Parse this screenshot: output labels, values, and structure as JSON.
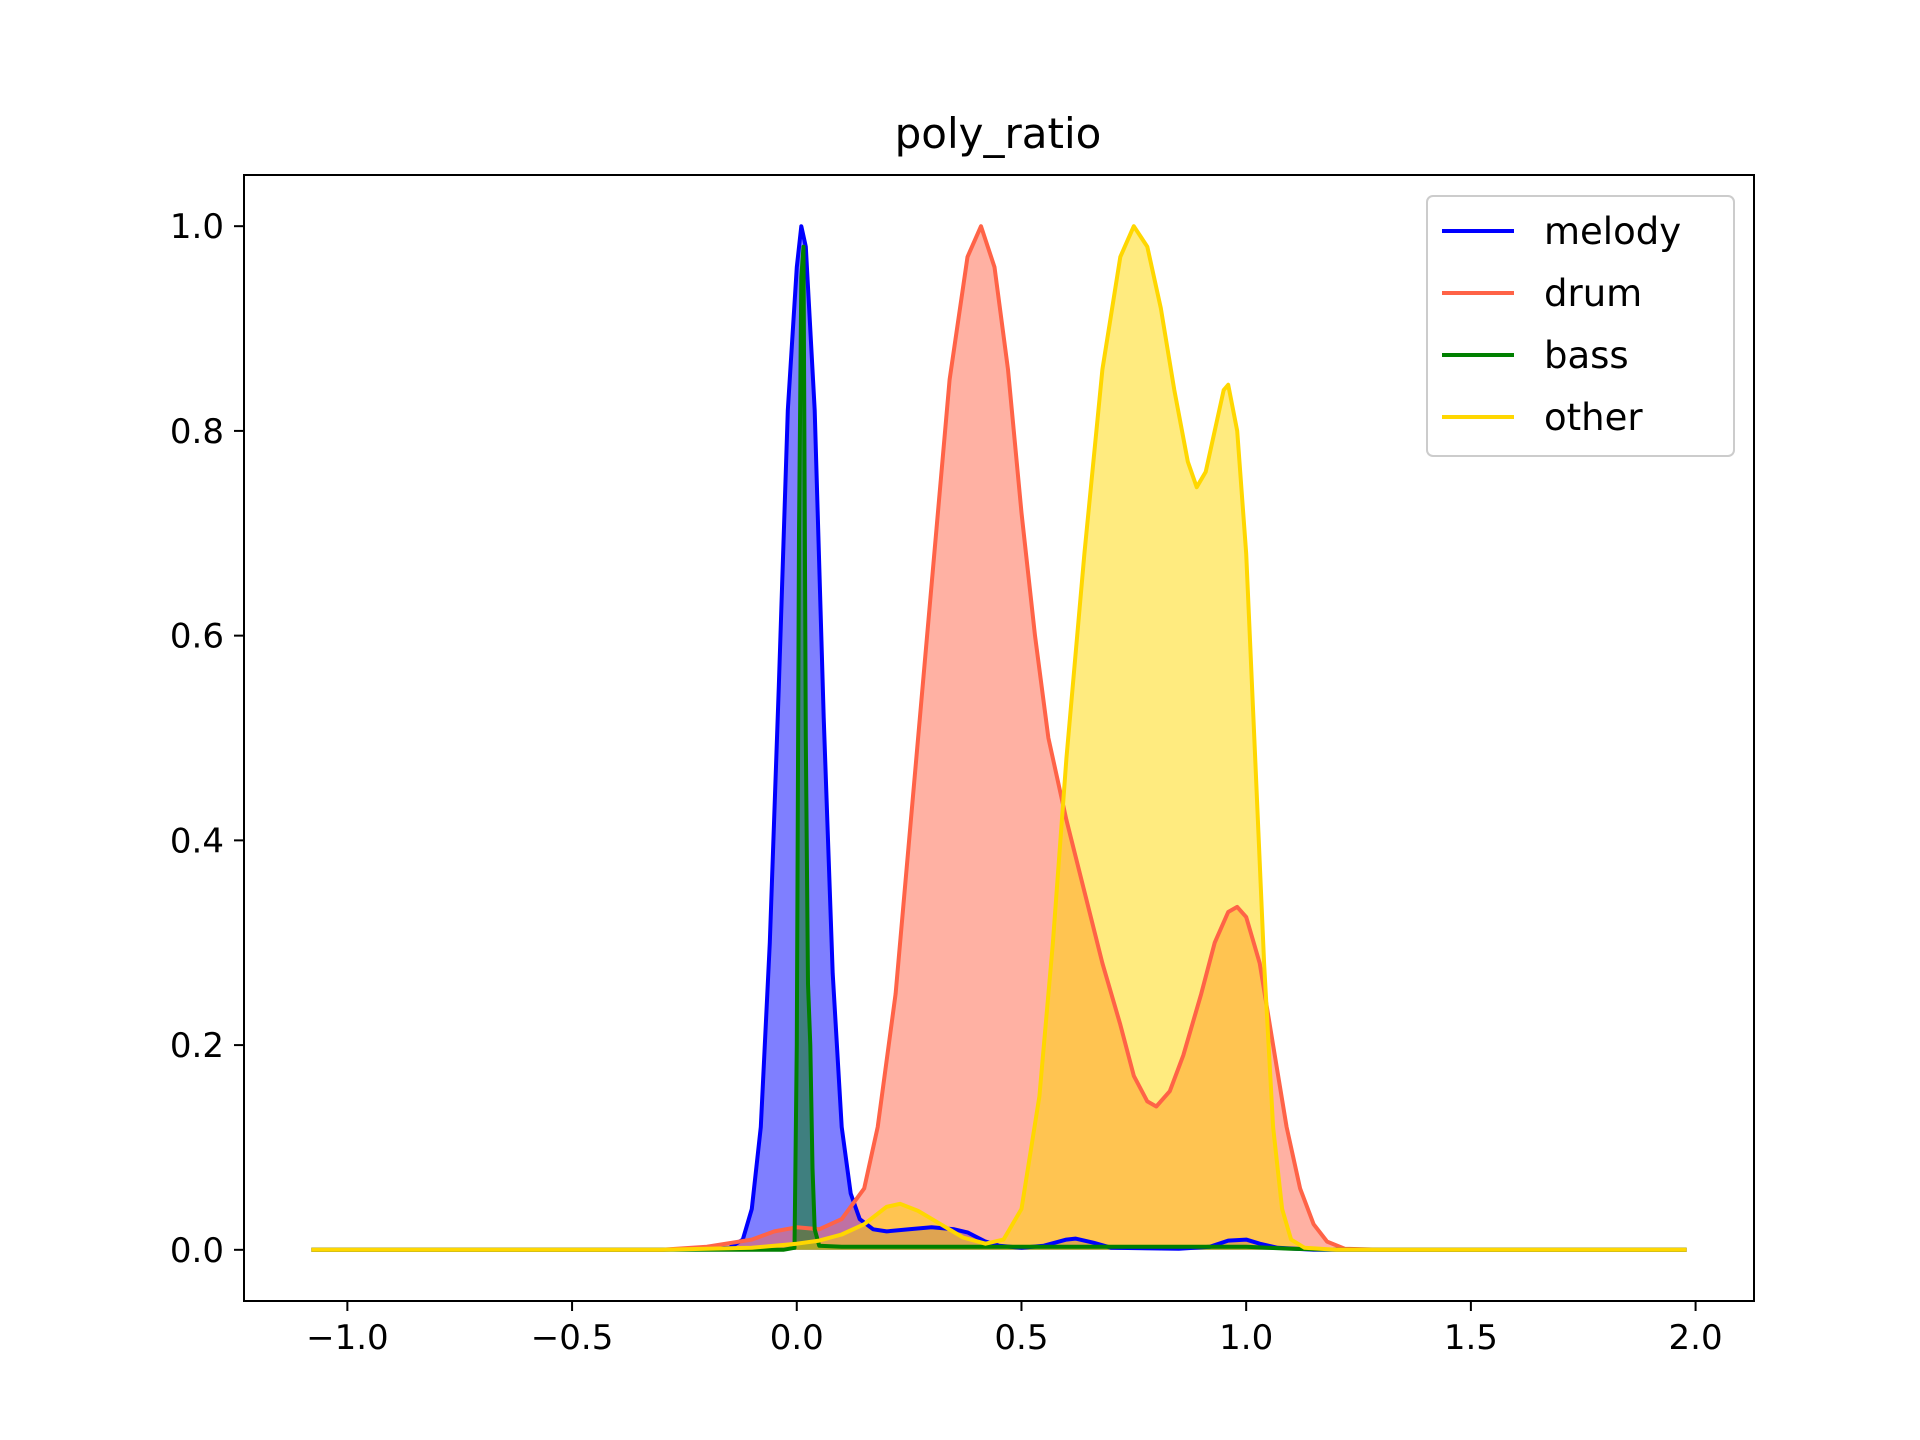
{
  "chart_data": {
    "type": "area",
    "title": "poly_ratio",
    "xlabel": "",
    "ylabel": "",
    "xlim": [
      -1.23,
      2.13
    ],
    "ylim": [
      -0.05,
      1.05
    ],
    "x_ticks": [
      -1.0,
      -0.5,
      0.0,
      0.5,
      1.0,
      1.5,
      2.0
    ],
    "x_tick_labels": [
      "−1.0",
      "−0.5",
      "0.0",
      "0.5",
      "1.0",
      "1.5",
      "2.0"
    ],
    "y_ticks": [
      0.0,
      0.2,
      0.4,
      0.6,
      0.8,
      1.0
    ],
    "y_tick_labels": [
      "0.0",
      "0.2",
      "0.4",
      "0.6",
      "0.8",
      "1.0"
    ],
    "grid": false,
    "legend_position": "top-right",
    "series": [
      {
        "name": "melody",
        "color": "#0000ff",
        "fill": true,
        "points": [
          [
            -1.08,
            0
          ],
          [
            -0.3,
            0
          ],
          [
            -0.15,
            0.002
          ],
          [
            -0.12,
            0.01
          ],
          [
            -0.1,
            0.04
          ],
          [
            -0.08,
            0.12
          ],
          [
            -0.06,
            0.3
          ],
          [
            -0.04,
            0.55
          ],
          [
            -0.02,
            0.82
          ],
          [
            0.0,
            0.96
          ],
          [
            0.01,
            1.0
          ],
          [
            0.02,
            0.98
          ],
          [
            0.04,
            0.82
          ],
          [
            0.06,
            0.52
          ],
          [
            0.08,
            0.27
          ],
          [
            0.1,
            0.12
          ],
          [
            0.12,
            0.055
          ],
          [
            0.14,
            0.03
          ],
          [
            0.17,
            0.02
          ],
          [
            0.2,
            0.018
          ],
          [
            0.25,
            0.02
          ],
          [
            0.3,
            0.022
          ],
          [
            0.35,
            0.02
          ],
          [
            0.38,
            0.017
          ],
          [
            0.42,
            0.008
          ],
          [
            0.45,
            0.004
          ],
          [
            0.5,
            0.002
          ],
          [
            0.55,
            0.004
          ],
          [
            0.6,
            0.01
          ],
          [
            0.62,
            0.011
          ],
          [
            0.66,
            0.007
          ],
          [
            0.7,
            0.002
          ],
          [
            0.85,
            0.001
          ],
          [
            0.92,
            0.003
          ],
          [
            0.96,
            0.009
          ],
          [
            1.0,
            0.01
          ],
          [
            1.03,
            0.006
          ],
          [
            1.07,
            0.002
          ],
          [
            1.15,
            0
          ],
          [
            1.98,
            0
          ]
        ]
      },
      {
        "name": "drum",
        "color": "#ff6347",
        "fill": true,
        "points": [
          [
            -1.08,
            0
          ],
          [
            -0.3,
            0
          ],
          [
            -0.2,
            0.003
          ],
          [
            -0.1,
            0.01
          ],
          [
            -0.05,
            0.018
          ],
          [
            0.0,
            0.022
          ],
          [
            0.05,
            0.02
          ],
          [
            0.1,
            0.03
          ],
          [
            0.15,
            0.06
          ],
          [
            0.18,
            0.12
          ],
          [
            0.22,
            0.25
          ],
          [
            0.26,
            0.45
          ],
          [
            0.3,
            0.65
          ],
          [
            0.34,
            0.85
          ],
          [
            0.38,
            0.97
          ],
          [
            0.41,
            1.0
          ],
          [
            0.44,
            0.96
          ],
          [
            0.47,
            0.86
          ],
          [
            0.5,
            0.72
          ],
          [
            0.53,
            0.6
          ],
          [
            0.56,
            0.5
          ],
          [
            0.6,
            0.42
          ],
          [
            0.64,
            0.35
          ],
          [
            0.68,
            0.28
          ],
          [
            0.72,
            0.22
          ],
          [
            0.75,
            0.17
          ],
          [
            0.78,
            0.145
          ],
          [
            0.8,
            0.14
          ],
          [
            0.83,
            0.155
          ],
          [
            0.86,
            0.19
          ],
          [
            0.9,
            0.25
          ],
          [
            0.93,
            0.3
          ],
          [
            0.96,
            0.33
          ],
          [
            0.98,
            0.335
          ],
          [
            1.0,
            0.325
          ],
          [
            1.03,
            0.28
          ],
          [
            1.06,
            0.2
          ],
          [
            1.09,
            0.12
          ],
          [
            1.12,
            0.06
          ],
          [
            1.15,
            0.025
          ],
          [
            1.18,
            0.008
          ],
          [
            1.22,
            0.001
          ],
          [
            1.3,
            0
          ],
          [
            1.98,
            0
          ]
        ]
      },
      {
        "name": "bass",
        "color": "#008000",
        "fill": true,
        "points": [
          [
            -1.08,
            0
          ],
          [
            -0.03,
            0
          ],
          [
            -0.005,
            0.002
          ],
          [
            0.0,
            0.2
          ],
          [
            0.005,
            0.7
          ],
          [
            0.01,
            0.95
          ],
          [
            0.015,
            0.98
          ],
          [
            0.02,
            0.5
          ],
          [
            0.025,
            0.26
          ],
          [
            0.03,
            0.2
          ],
          [
            0.035,
            0.08
          ],
          [
            0.04,
            0.02
          ],
          [
            0.05,
            0.004
          ],
          [
            0.1,
            0.003
          ],
          [
            0.6,
            0.003
          ],
          [
            1.0,
            0.003
          ],
          [
            1.1,
            0.001
          ],
          [
            1.2,
            0
          ],
          [
            1.98,
            0
          ]
        ]
      },
      {
        "name": "other",
        "color": "#ffd700",
        "fill": true,
        "points": [
          [
            -1.08,
            0
          ],
          [
            -0.3,
            0
          ],
          [
            -0.1,
            0.002
          ],
          [
            -0.05,
            0.004
          ],
          [
            0.0,
            0.006
          ],
          [
            0.05,
            0.009
          ],
          [
            0.1,
            0.015
          ],
          [
            0.15,
            0.025
          ],
          [
            0.2,
            0.042
          ],
          [
            0.23,
            0.045
          ],
          [
            0.27,
            0.038
          ],
          [
            0.32,
            0.025
          ],
          [
            0.37,
            0.012
          ],
          [
            0.42,
            0.006
          ],
          [
            0.46,
            0.01
          ],
          [
            0.5,
            0.04
          ],
          [
            0.54,
            0.15
          ],
          [
            0.57,
            0.3
          ],
          [
            0.6,
            0.48
          ],
          [
            0.64,
            0.68
          ],
          [
            0.68,
            0.86
          ],
          [
            0.72,
            0.97
          ],
          [
            0.75,
            1.0
          ],
          [
            0.78,
            0.98
          ],
          [
            0.81,
            0.92
          ],
          [
            0.84,
            0.84
          ],
          [
            0.87,
            0.77
          ],
          [
            0.89,
            0.745
          ],
          [
            0.91,
            0.76
          ],
          [
            0.93,
            0.8
          ],
          [
            0.95,
            0.84
          ],
          [
            0.96,
            0.845
          ],
          [
            0.98,
            0.8
          ],
          [
            1.0,
            0.68
          ],
          [
            1.02,
            0.48
          ],
          [
            1.04,
            0.28
          ],
          [
            1.06,
            0.12
          ],
          [
            1.08,
            0.04
          ],
          [
            1.1,
            0.01
          ],
          [
            1.13,
            0.002
          ],
          [
            1.2,
            0
          ],
          [
            1.98,
            0
          ]
        ]
      }
    ]
  }
}
